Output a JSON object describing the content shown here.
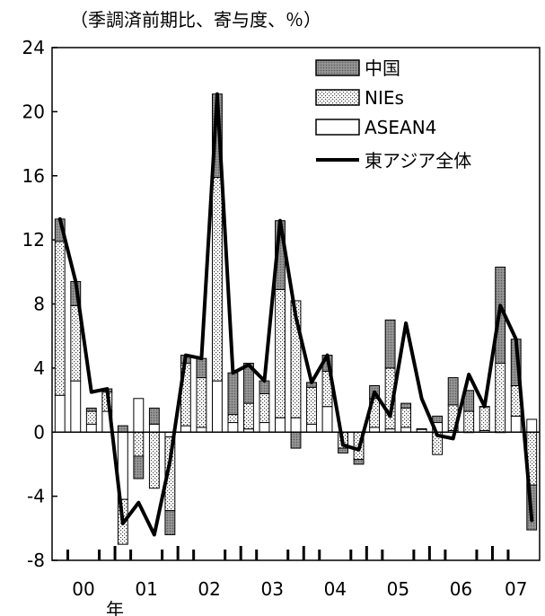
{
  "chart_data": {
    "type": "bar",
    "subtype": "stacked-bar-with-line",
    "unit_label": "（季調済前期比、寄与度、％）",
    "x_axis_unit": "年",
    "ylim": [
      -8,
      24
    ],
    "yticks": [
      24,
      20,
      16,
      12,
      8,
      4,
      0,
      -4,
      -8
    ],
    "ytick_labels": [
      "24",
      "20",
      "16",
      "12",
      "8",
      "4",
      "0",
      "-4",
      "-8"
    ],
    "year_labels": [
      "00",
      "01",
      "02",
      "03",
      "04",
      "05",
      "06",
      "07"
    ],
    "year_start_index": [
      0,
      4,
      8,
      12,
      16,
      20,
      24,
      28
    ],
    "series": [
      {
        "name": "中国",
        "values": [
          1.4,
          1.5,
          0.2,
          0.2,
          0.4,
          -1.4,
          1.0,
          -1.5,
          0.5,
          1.2,
          5.2,
          2.6,
          2.5,
          0.8,
          4.3,
          -1.0,
          0.3,
          1.0,
          -0.3,
          -0.3,
          0.8,
          3.0,
          0.3,
          0.0,
          0.4,
          1.7,
          1.3,
          0.0,
          6.0,
          2.9,
          -2.8
        ]
      },
      {
        "name": "NIEs",
        "values": [
          9.6,
          4.7,
          0.8,
          1.2,
          -2.8,
          -1.5,
          -3.5,
          -4.6,
          3.9,
          3.1,
          12.7,
          0.5,
          1.6,
          1.8,
          8.0,
          7.3,
          2.3,
          2.2,
          -1.0,
          -1.7,
          1.8,
          3.8,
          1.2,
          0.0,
          -1.4,
          1.6,
          1.3,
          1.5,
          4.3,
          1.9,
          -3.3
        ]
      },
      {
        "name": "ASEAN4",
        "values": [
          2.3,
          3.2,
          0.5,
          1.3,
          -4.2,
          2.1,
          0.5,
          -0.3,
          0.4,
          0.3,
          3.2,
          0.6,
          0.2,
          0.6,
          0.9,
          0.9,
          0.5,
          1.6,
          0.0,
          0.0,
          0.3,
          0.2,
          0.3,
          0.2,
          0.6,
          0.1,
          0.0,
          0.1,
          0.0,
          1.0,
          0.8
        ]
      },
      {
        "name": "東アジア全体",
        "type": "line",
        "values": [
          13.3,
          9.4,
          2.5,
          2.7,
          -5.7,
          -4.4,
          -6.4,
          -1.8,
          4.8,
          4.6,
          21.1,
          3.7,
          4.2,
          3.2,
          13.2,
          7.2,
          3.1,
          4.8,
          -0.8,
          -1.1,
          2.5,
          1.0,
          6.8,
          2.1,
          -0.2,
          -0.4,
          3.6,
          1.6,
          7.9,
          5.8,
          -5.5
        ]
      }
    ],
    "legend_position": "top-right",
    "grid": false
  }
}
